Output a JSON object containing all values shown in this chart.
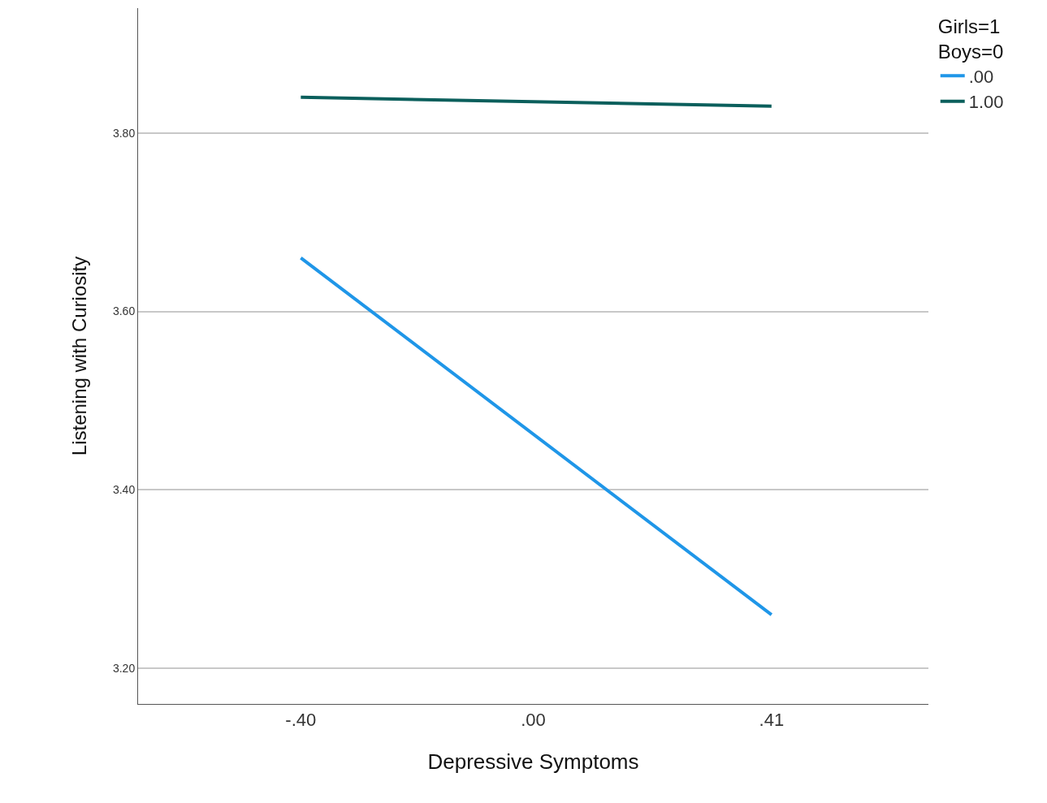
{
  "chart_data": {
    "type": "line",
    "xlabel": "Depressive Symptoms",
    "ylabel": "Listening with Curiosity",
    "legend_title": "Girls=1\nBoys=0",
    "x": [
      -0.4,
      0.41
    ],
    "series": [
      {
        "name": ".00",
        "color": "#1f96e8",
        "values": [
          3.66,
          3.26
        ]
      },
      {
        "name": "1.00",
        "color": "#0b5f5c",
        "values": [
          3.84,
          3.83
        ]
      }
    ],
    "xlim": [
      -0.68,
      0.68
    ],
    "xticks": [
      {
        "value": -0.4,
        "label": "-.40"
      },
      {
        "value": 0,
        "label": ".00"
      },
      {
        "value": 0.41,
        "label": ".41"
      }
    ],
    "ylim": [
      3.16,
      3.94
    ],
    "yticks": [
      {
        "value": 3.2,
        "label": "3.20"
      },
      {
        "value": 3.4,
        "label": "3.40"
      },
      {
        "value": 3.6,
        "label": "3.60"
      },
      {
        "value": 3.8,
        "label": "3.80"
      }
    ],
    "grid": "y",
    "legend": "top right",
    "marker": "none",
    "line_style": "solid"
  }
}
